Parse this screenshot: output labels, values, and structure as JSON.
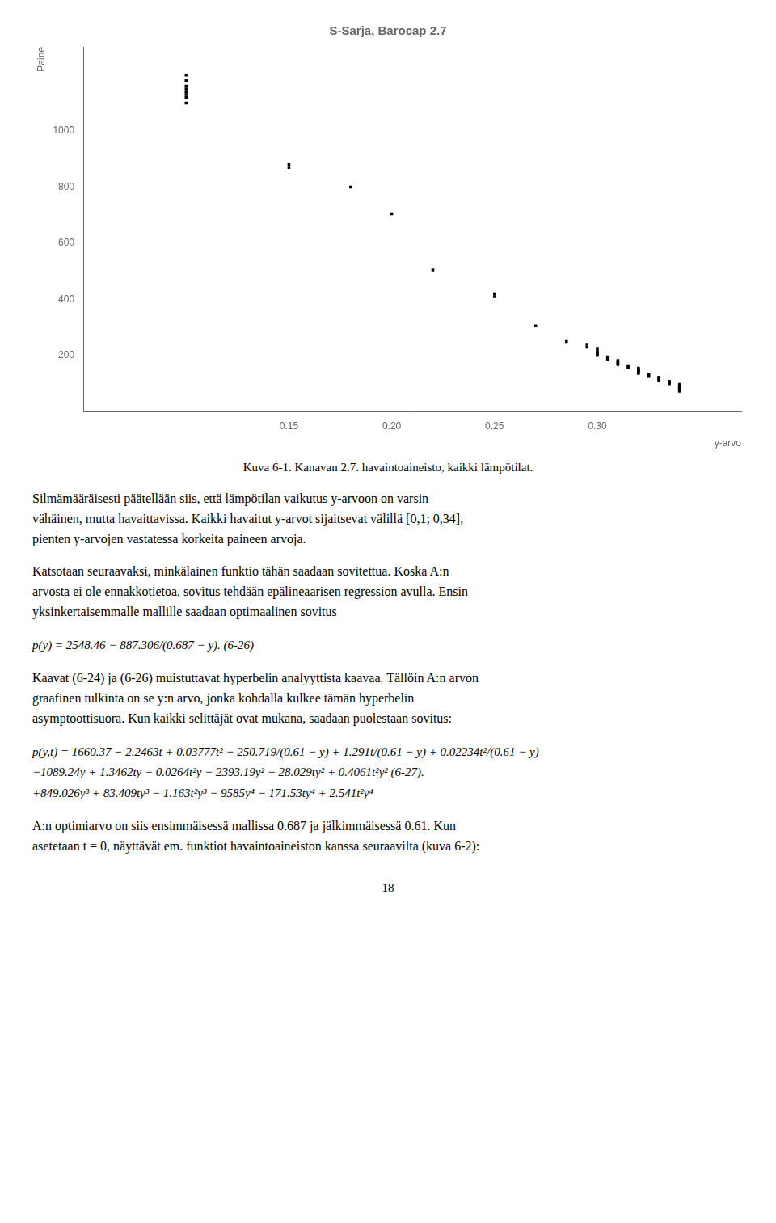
{
  "chart_data": {
    "type": "scatter",
    "title": "S-Sarja, Barocap 2.7",
    "xlabel": "y-arvo",
    "ylabel": "Paine",
    "x": [
      0.1,
      0.1,
      0.1,
      0.1,
      0.1,
      0.1,
      0.1,
      0.1,
      0.15,
      0.15,
      0.18,
      0.2,
      0.22,
      0.25,
      0.25,
      0.27,
      0.285,
      0.295,
      0.295,
      0.3,
      0.3,
      0.3,
      0.3,
      0.3,
      0.305,
      0.305,
      0.305,
      0.31,
      0.31,
      0.31,
      0.31,
      0.315,
      0.315,
      0.32,
      0.32,
      0.32,
      0.32,
      0.32,
      0.32,
      0.325,
      0.325,
      0.325,
      0.33,
      0.33,
      0.33,
      0.33,
      0.33,
      0.335,
      0.335,
      0.335,
      0.335,
      0.34,
      0.34,
      0.34,
      0.34,
      0.34,
      0.34,
      0.34,
      0.34,
      0.34
    ],
    "values": [
      1200,
      1180,
      1160,
      1150,
      1140,
      1130,
      1120,
      1100,
      880,
      870,
      800,
      705,
      505,
      420,
      410,
      305,
      250,
      240,
      230,
      225,
      215,
      210,
      205,
      200,
      195,
      190,
      185,
      182,
      178,
      173,
      168,
      163,
      158,
      155,
      150,
      147,
      143,
      140,
      136,
      133,
      129,
      125,
      122,
      119,
      116,
      113,
      110,
      108,
      105,
      102,
      99,
      97,
      94,
      91,
      88,
      85,
      82,
      79,
      76,
      73
    ],
    "color": "#000000",
    "marker": "square",
    "xlim": [
      0.05,
      0.37
    ],
    "xticks": [
      0.15,
      {
        "value": 0.2,
        "label": "0.20"
      },
      0.25,
      {
        "value": 0.3,
        "label": "0.30"
      }
    ],
    "ylim": [
      0,
      1300
    ],
    "yticks": [
      200,
      400,
      600,
      800,
      1000
    ],
    "grid": false,
    "annotations": [
      "Kuva 6-1. Kanavan 2.7. havaintoaineisto, kaikki lämpötilat.",
      "Silmämääräisesti päätellään siis, että lämpötilan vaikutus y-arvoon on varsin\nvähäinen, mutta havaittavissa. Kaikki havaitut y-arvot sijaitsevat välillä [0,1; 0,34],\npienten y-arvojen vastatessa korkeita paineen arvoja.",
      "Katsotaan seuraavaksi, minkälainen funktio tähän saadaan sovitettua. Koska A:n\narvosta ei ole ennakkotietoa, sovitus tehdään epälineaarisen regression avulla. Ensin\nyksinkertaisemmalle mallille saadaan optimaalinen sovitus",
      "p(y) = 2548.46 − 887.306/(0.687 − y).      (6-26)",
      "Kaavat (6-24) ja (6-26) muistuttavat hyperbelin analyyttista kaavaa. Tällöin A:n arvon\ngraafinen tulkinta on se y:n arvo, jonka kohdalla kulkee tämän hyperbelin\nasymptoottisuora. Kun kaikki selittäjät ovat mukana, saadaan puolestaan sovitus:",
      "p(y,t) = 1660.37 − 2.2463t + 0.03777t² − 250.719/(0.61 − y) + 1.291t/(0.61 − y) + 0.02234t²/(0.61 − y)\n−1089.24y + 1.3462ty − 0.0264t²y − 2393.19y² − 28.029ty² + 0.4061t²y²      (6-27).\n+849.026y³ + 83.409ty³ − 1.163t²y³ − 9585y⁴ − 171.53ty⁴ + 2.541t²y⁴",
      "A:n optimiarvo on siis ensimmäisessä mallissa 0.687 ja jälkimmäisessä 0.61. Kun\nasetetaan  t = 0, näyttävät em. funktiot havaintoaineiston kanssa seuraavilta (kuva 6-2):",
      "18"
    ]
  }
}
